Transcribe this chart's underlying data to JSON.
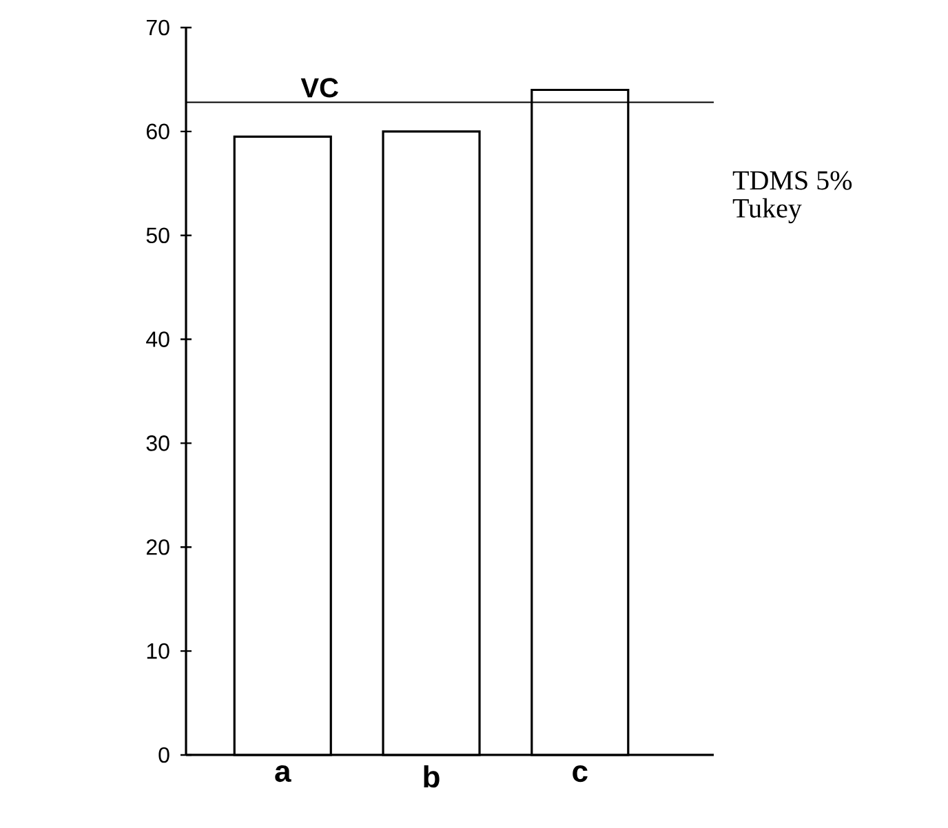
{
  "chart_data": {
    "type": "bar",
    "categories": [
      "a",
      "b",
      "c"
    ],
    "values": [
      59.5,
      60,
      64
    ],
    "color": "#ffffff",
    "ylim": [
      0,
      70
    ],
    "yticks": [
      0,
      10,
      20,
      30,
      40,
      50,
      60,
      70
    ],
    "ref_lines": [
      {
        "axis": "y",
        "value": 62.8,
        "label": "VC",
        "color": "#000000"
      }
    ],
    "annotations": [
      "TDMS 5%",
      "Tukey"
    ]
  }
}
